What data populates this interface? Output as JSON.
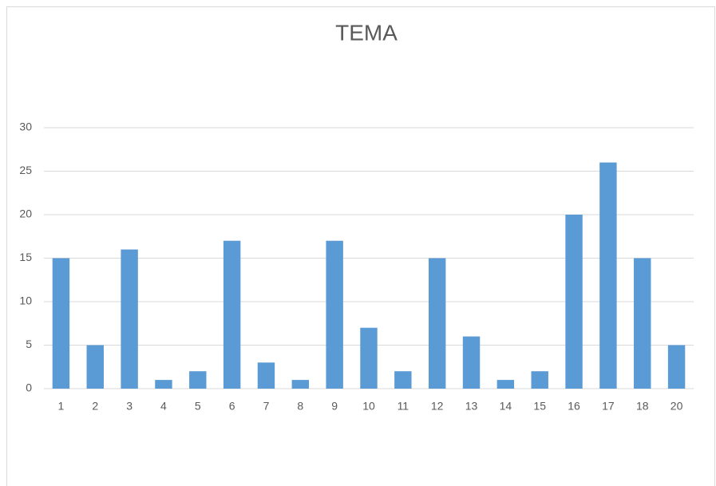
{
  "chart_data": {
    "type": "bar",
    "title": "TEMA",
    "categories": [
      "1",
      "2",
      "3",
      "4",
      "5",
      "6",
      "7",
      "8",
      "9",
      "10",
      "11",
      "12",
      "13",
      "14",
      "15",
      "16",
      "17",
      "18",
      "20"
    ],
    "values": [
      15,
      5,
      16,
      1,
      2,
      17,
      3,
      1,
      17,
      7,
      2,
      15,
      6,
      1,
      2,
      20,
      26,
      15,
      5
    ],
    "color": "#5b9bd5",
    "ylim": [
      0,
      30
    ],
    "yticks": [
      0,
      5,
      10,
      15,
      20,
      25,
      30
    ],
    "grid": true
  }
}
